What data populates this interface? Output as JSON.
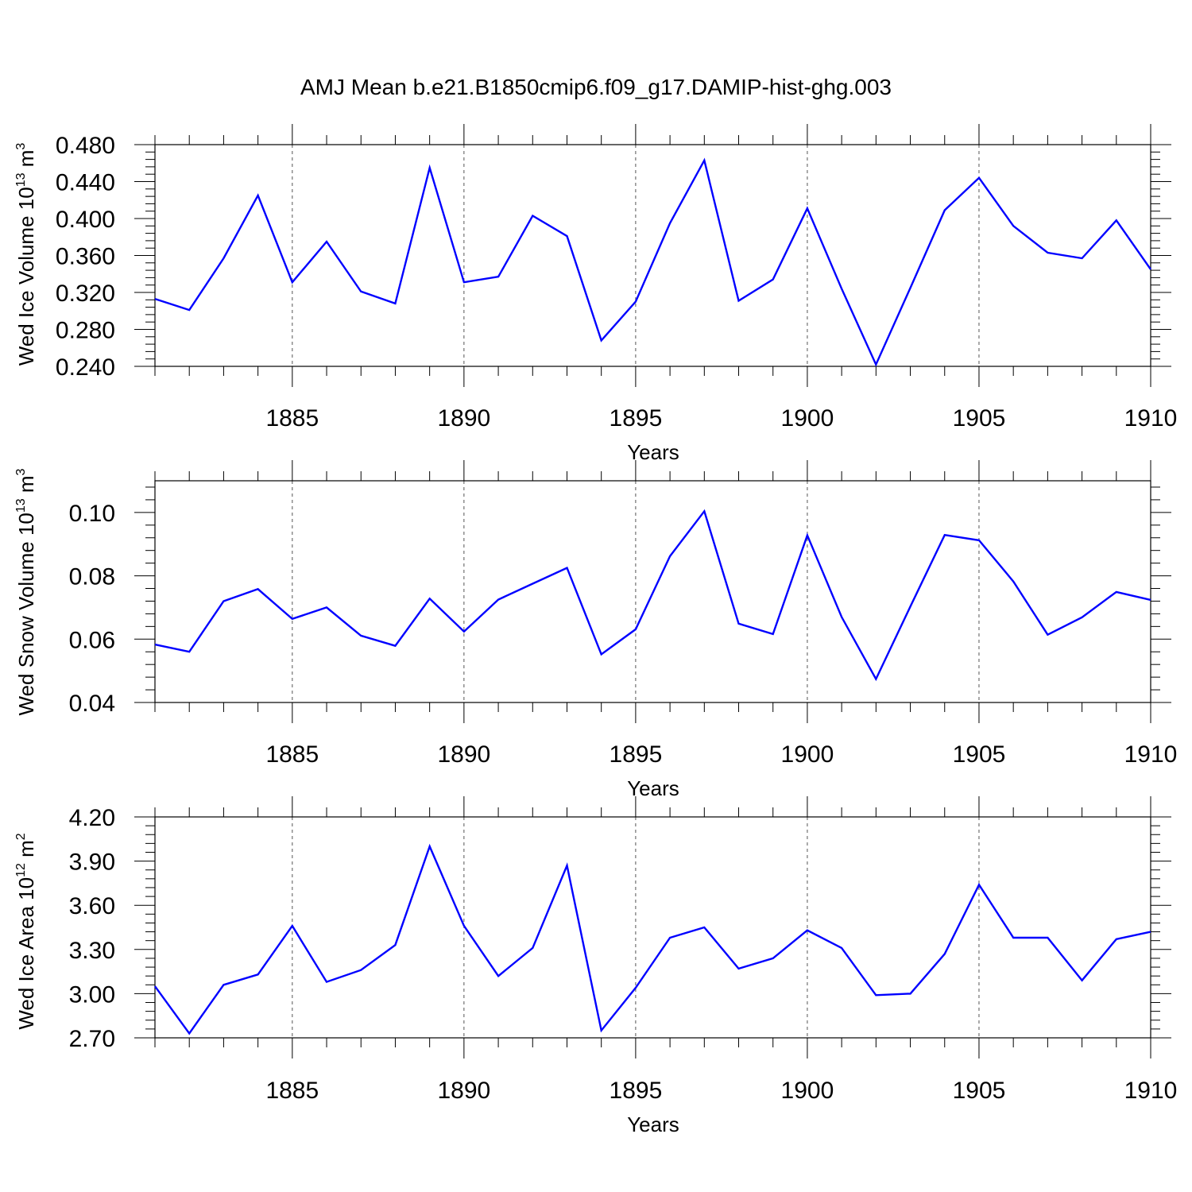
{
  "title": "AMJ Mean b.e21.B1850cmip6.f09_g17.DAMIP-hist-ghg.003",
  "colors": {
    "series": "#0000ff",
    "frame": "#000000",
    "grid": "#555555"
  },
  "chart_data": [
    {
      "type": "line",
      "ylabel": {
        "text": "Wed Ice Volume 10",
        "exp": "13",
        "unit": "m",
        "unit_exp": "3"
      },
      "xlabel": "Years",
      "xlim": [
        1881,
        1910
      ],
      "ylim": [
        0.24,
        0.48
      ],
      "yticks": [
        0.24,
        0.28,
        0.32,
        0.36,
        0.4,
        0.44,
        0.48
      ],
      "ytick_labels": [
        "0.240",
        "0.280",
        "0.320",
        "0.360",
        "0.400",
        "0.440",
        "0.480"
      ],
      "xticks": [
        1885,
        1890,
        1895,
        1900,
        1905,
        1910
      ],
      "xtick_labels": [
        "1885",
        "1890",
        "1895",
        "1900",
        "1905",
        "1910"
      ],
      "grid": "dashed vertical at major x ticks",
      "x": [
        1881,
        1882,
        1883,
        1884,
        1885,
        1886,
        1887,
        1888,
        1889,
        1890,
        1891,
        1892,
        1893,
        1894,
        1895,
        1896,
        1897,
        1898,
        1899,
        1900,
        1901,
        1902,
        1903,
        1904,
        1905,
        1906,
        1907,
        1908,
        1909,
        1910
      ],
      "values": [
        0.313,
        0.301,
        0.357,
        0.425,
        0.331,
        0.375,
        0.321,
        0.308,
        0.455,
        0.331,
        0.337,
        0.403,
        0.381,
        0.268,
        0.31,
        0.395,
        0.463,
        0.311,
        0.334,
        0.411,
        0.324,
        0.242,
        0.325,
        0.409,
        0.444,
        0.392,
        0.363,
        0.357,
        0.398,
        0.345
      ]
    },
    {
      "type": "line",
      "ylabel": {
        "text": "Wed Snow Volume 10",
        "exp": "13",
        "unit": "m",
        "unit_exp": "3"
      },
      "xlabel": "Years",
      "xlim": [
        1881,
        1910
      ],
      "ylim": [
        0.04,
        0.11
      ],
      "yticks": [
        0.04,
        0.06,
        0.08,
        0.1
      ],
      "ytick_labels": [
        "0.04",
        "0.06",
        "0.08",
        "0.10"
      ],
      "xticks": [
        1885,
        1890,
        1895,
        1900,
        1905,
        1910
      ],
      "xtick_labels": [
        "1885",
        "1890",
        "1895",
        "1900",
        "1905",
        "1910"
      ],
      "grid": "dashed vertical at major x ticks",
      "x": [
        1881,
        1882,
        1883,
        1884,
        1885,
        1886,
        1887,
        1888,
        1889,
        1890,
        1891,
        1892,
        1893,
        1894,
        1895,
        1896,
        1897,
        1898,
        1899,
        1900,
        1901,
        1902,
        1903,
        1904,
        1905,
        1906,
        1907,
        1908,
        1909,
        1910
      ],
      "values": [
        0.0583,
        0.056,
        0.072,
        0.0758,
        0.0664,
        0.07,
        0.0611,
        0.0579,
        0.0728,
        0.0624,
        0.0725,
        0.0775,
        0.0825,
        0.0552,
        0.0631,
        0.0862,
        0.1004,
        0.0649,
        0.0616,
        0.0928,
        0.067,
        0.0474,
        0.0703,
        0.0929,
        0.0912,
        0.0782,
        0.0614,
        0.0669,
        0.0749,
        0.0724
      ]
    },
    {
      "type": "line",
      "ylabel": {
        "text": "Wed Ice Area 10",
        "exp": "12",
        "unit": "m",
        "unit_exp": "2"
      },
      "xlabel": "Years",
      "xlim": [
        1881,
        1910
      ],
      "ylim": [
        2.7,
        4.2
      ],
      "yticks": [
        2.7,
        3.0,
        3.3,
        3.6,
        3.9,
        4.2
      ],
      "ytick_labels": [
        "2.70",
        "3.00",
        "3.30",
        "3.60",
        "3.90",
        "4.20"
      ],
      "xticks": [
        1885,
        1890,
        1895,
        1900,
        1905,
        1910
      ],
      "xtick_labels": [
        "1885",
        "1890",
        "1895",
        "1900",
        "1905",
        "1910"
      ],
      "grid": "dashed vertical at major x ticks",
      "x": [
        1881,
        1882,
        1883,
        1884,
        1885,
        1886,
        1887,
        1888,
        1889,
        1890,
        1891,
        1892,
        1893,
        1894,
        1895,
        1896,
        1897,
        1898,
        1899,
        1900,
        1901,
        1902,
        1903,
        1904,
        1905,
        1906,
        1907,
        1908,
        1909,
        1910
      ],
      "values": [
        3.05,
        2.73,
        3.06,
        3.13,
        3.46,
        3.08,
        3.16,
        3.33,
        4.0,
        3.46,
        3.12,
        3.31,
        3.87,
        2.75,
        3.04,
        3.38,
        3.45,
        3.17,
        3.24,
        3.43,
        3.31,
        2.99,
        3.0,
        3.27,
        3.74,
        3.38,
        3.38,
        3.09,
        3.37,
        3.42
      ]
    }
  ]
}
